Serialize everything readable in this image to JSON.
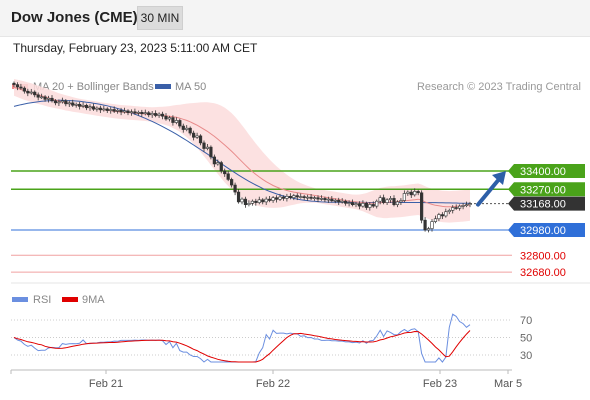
{
  "header": {
    "title": "Dow Jones (CME)",
    "timeframe": "30 MIN"
  },
  "datetime": "Thursday, February 23, 2023 5:11:00 AM CET",
  "legend": {
    "ma20": "MA 20 + Bollinger Bands",
    "ma50": "MA 50",
    "copyright": "Research © 2023 Trading Central",
    "rsi": "RSI",
    "rsi_ma": "9MA"
  },
  "colors": {
    "bollinger": "#fbdcdc",
    "ma20": "#e88a8a",
    "ma50": "#3a5fa8",
    "resistance": "#4aa31a",
    "support": "#2f6fd8",
    "support_light": "#f0a0a0",
    "current": "#333333",
    "arrow": "#2d5fa8",
    "rsi": "#6b8fe0",
    "rsi_ma": "#e00000"
  },
  "chart_data": {
    "type": "candlestick",
    "x_ticks": [
      "Feb 21",
      "Feb 22",
      "Feb 23",
      "Mar 5"
    ],
    "price_levels": [
      {
        "value": 33400.0,
        "label": "33400.00",
        "role": "resistance"
      },
      {
        "value": 33270.0,
        "label": "33270.00",
        "role": "resistance"
      },
      {
        "value": 33168.0,
        "label": "33168.00",
        "role": "current"
      },
      {
        "value": 32980.0,
        "label": "32980.00",
        "role": "support"
      },
      {
        "value": 32800.0,
        "label": "32800.00",
        "role": "support_light"
      },
      {
        "value": 32680.0,
        "label": "32680.00",
        "role": "support_light"
      }
    ],
    "close": [
      34015,
      33998,
      33990,
      33968,
      33955,
      33962,
      33942,
      33925,
      33928,
      33910,
      33918,
      33900,
      33885,
      33892,
      33900,
      33878,
      33885,
      33868,
      33875,
      33860,
      33868,
      33850,
      33858,
      33840,
      33848,
      33835,
      33842,
      33830,
      33838,
      33825,
      33832,
      33820,
      33828,
      33815,
      33822,
      33812,
      33818,
      33808,
      33815,
      33800,
      33810,
      33795,
      33805,
      33790,
      33770,
      33780,
      33745,
      33760,
      33720,
      33695,
      33705,
      33670,
      33640,
      33650,
      33600,
      33560,
      33570,
      33500,
      33450,
      33460,
      33400,
      33380,
      33340,
      33300,
      33250,
      33180,
      33200,
      33160,
      33170,
      33185,
      33175,
      33195,
      33180,
      33200,
      33190,
      33210,
      33198,
      33215,
      33205,
      33220,
      33210,
      33225,
      33215,
      33218,
      33210,
      33214,
      33205,
      33210,
      33200,
      33205,
      33195,
      33200,
      33188,
      33192,
      33180,
      33185,
      33170,
      33175,
      33160,
      33168,
      33150,
      33170,
      33140,
      33162,
      33150,
      33185,
      33210,
      33175,
      33195,
      33205,
      33160,
      33180,
      33190,
      33240,
      33250,
      33230,
      33255,
      33245,
      33050,
      32980,
      32990,
      33040,
      33060,
      33090,
      33080,
      33110,
      33120,
      33140,
      33135,
      33150,
      33155,
      33160,
      33168
    ],
    "ma20": [
      33995,
      33988,
      33980,
      33972,
      33965,
      33958,
      33950,
      33942,
      33935,
      33928,
      33920,
      33912,
      33905,
      33898,
      33892,
      33885,
      33880,
      33874,
      33869,
      33865,
      33860,
      33856,
      33852,
      33848,
      33844,
      33840,
      33836,
      33832,
      33829,
      33826,
      33823,
      33820,
      33818,
      33816,
      33814,
      33812,
      33810,
      33808,
      33806,
      33804,
      33802,
      33800,
      33798,
      33796,
      33793,
      33790,
      33786,
      33782,
      33776,
      33768,
      33760,
      33750,
      33738,
      33726,
      33712,
      33697,
      33682,
      33664,
      33646,
      33627,
      33606,
      33585,
      33563,
      33540,
      33516,
      33491,
      33466,
      33441,
      33418,
      33396,
      33376,
      33357,
      33340,
      33324,
      33310,
      33297,
      33286,
      33276,
      33268,
      33261,
      33255,
      33250,
      33246,
      33242,
      33238,
      33234,
      33230,
      33226,
      33222,
      33218,
      33214,
      33210,
      33206,
      33202,
      33198,
      33194,
      33190,
      33186,
      33183,
      33180,
      33177,
      33175,
      33173,
      33172,
      33171,
      33172,
      33174,
      33175,
      33177,
      33179,
      33180,
      33182,
      33184,
      33187,
      33190,
      33193,
      33196,
      33199,
      33192,
      33180,
      33170,
      33162,
      33156,
      33152,
      33148,
      33146,
      33145,
      33146,
      33148,
      33150,
      33152,
      33155,
      33158
    ],
    "ma50": [
      33860,
      33866,
      33872,
      33877,
      33882,
      33886,
      33890,
      33893,
      33896,
      33898,
      33900,
      33901,
      33902,
      33903,
      33903,
      33902,
      33901,
      33900,
      33898,
      33896,
      33893,
      33890,
      33887,
      33883,
      33879,
      33874,
      33869,
      33864,
      33858,
      33852,
      33845,
      33838,
      33830,
      33822,
      33813,
      33804,
      33795,
      33785,
      33775,
      33764,
      33753,
      33741,
      33729,
      33716,
      33703,
      33690,
      33676,
      33662,
      33647,
      33632,
      33617,
      33601,
      33585,
      33569,
      33553,
      33537,
      33520,
      33503,
      33487,
      33470,
      33453,
      33436,
      33419,
      33403,
      33387,
      33371,
      33356,
      33341,
      33327,
      33313,
      33300,
      33288,
      33276,
      33265,
      33255,
      33246,
      33237,
      33229,
      33222,
      33216,
      33210,
      33205,
      33200,
      33196,
      33192,
      33189,
      33186,
      33184,
      33182,
      33180,
      33179,
      33178,
      33177,
      33177,
      33177,
      33177,
      33177,
      33177,
      33177,
      33177,
      33177,
      33177,
      33176,
      33176,
      33176,
      33176,
      33176,
      33176,
      33176,
      33176,
      33176,
      33176,
      33176,
      33176,
      33176,
      33176,
      33176,
      33176,
      33176,
      33175,
      33175,
      33175,
      33175,
      33174,
      33174,
      33173,
      33173,
      33172,
      33172,
      33171,
      33171,
      33170,
      33170
    ],
    "bb_width": [
      60,
      62,
      64,
      66,
      66,
      66,
      66,
      65,
      64,
      63,
      62,
      60,
      58,
      56,
      55,
      54,
      53,
      52,
      51,
      50,
      50,
      50,
      50,
      50,
      50,
      50,
      50,
      50,
      50,
      50,
      50,
      50,
      50,
      50,
      50,
      50,
      50,
      50,
      50,
      51,
      52,
      55,
      58,
      62,
      66,
      72,
      80,
      88,
      96,
      108,
      120,
      132,
      146,
      160,
      176,
      192,
      208,
      222,
      236,
      248,
      258,
      266,
      270,
      272,
      270,
      266,
      260,
      252,
      242,
      232,
      220,
      208,
      196,
      184,
      172,
      160,
      148,
      136,
      124,
      112,
      100,
      90,
      80,
      72,
      66,
      60,
      56,
      52,
      50,
      50,
      50,
      50,
      50,
      50,
      50,
      50,
      50,
      50,
      50,
      52,
      56,
      62,
      70,
      80,
      90,
      100,
      106,
      110,
      112,
      112,
      112,
      112,
      112,
      112,
      112,
      112,
      112,
      112,
      112,
      112,
      112,
      112,
      112,
      112,
      112,
      112,
      112,
      112,
      112,
      112,
      112,
      112,
      112
    ],
    "rsi_axis": [
      30,
      50,
      70
    ],
    "rsi_ylim": [
      0,
      100
    ]
  }
}
